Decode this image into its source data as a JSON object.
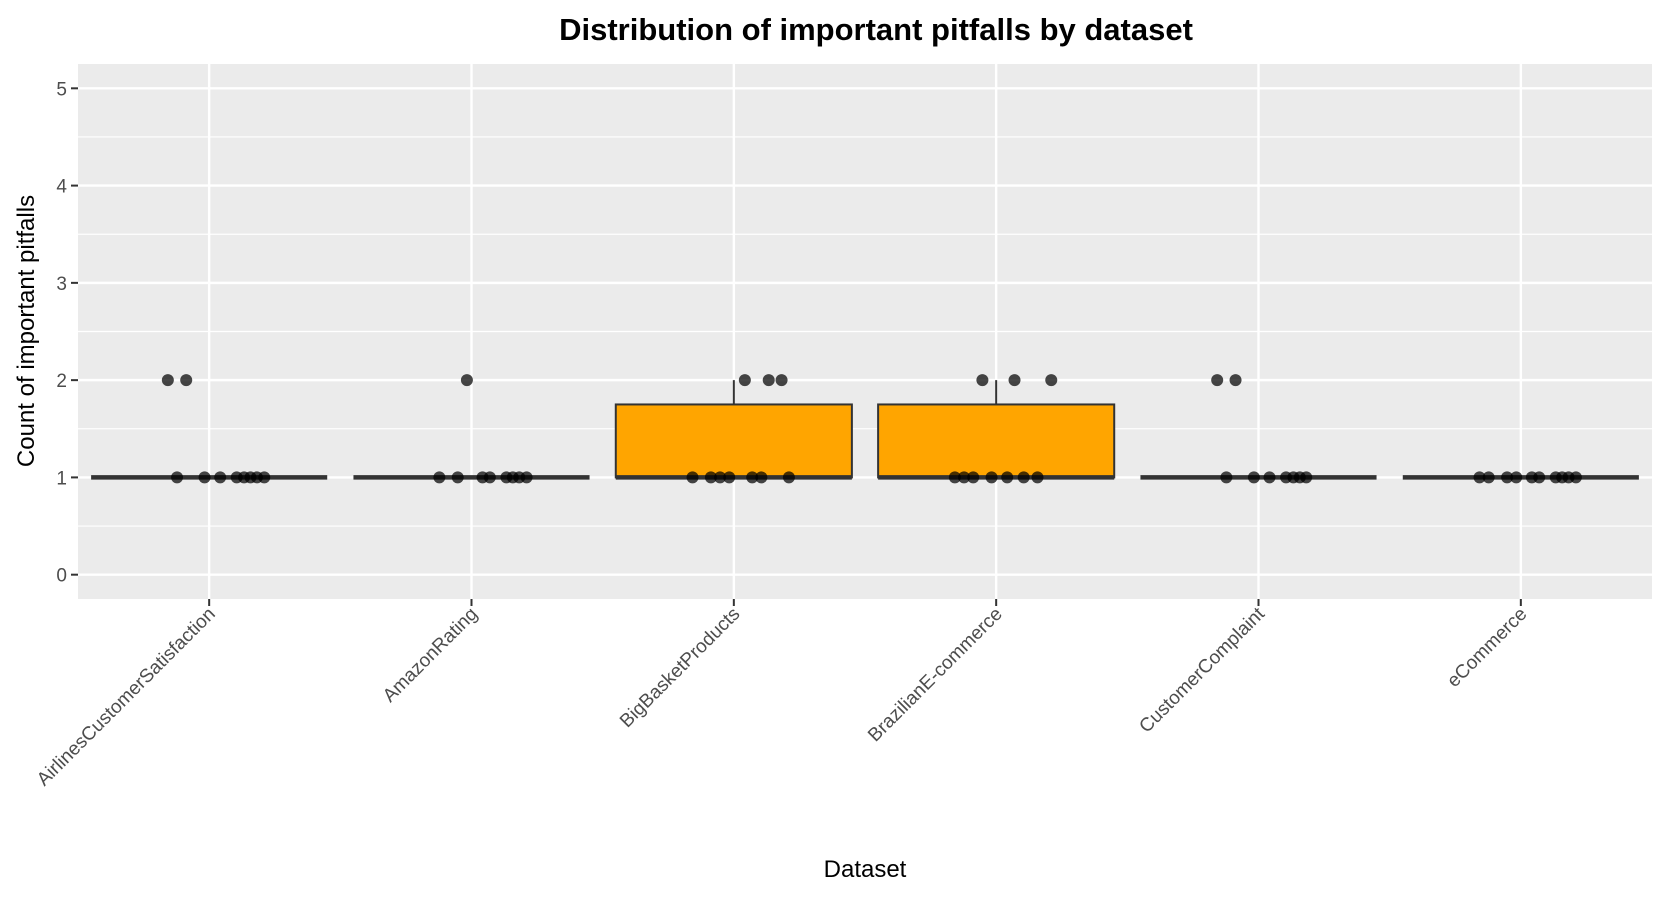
{
  "chart_data": {
    "type": "box",
    "title": "Distribution of important pitfalls by dataset",
    "xlabel": "Dataset",
    "ylabel": "Count of important pitfalls",
    "ylim": [
      -0.25,
      5.25
    ],
    "yticks": [
      "0",
      "1",
      "2",
      "3",
      "4",
      "5"
    ],
    "grid": true,
    "legend": "none",
    "colors": {
      "panel": "#ebebeb",
      "grid": "#ffffff",
      "box_fill": "#ffa500",
      "box_line": "#333333",
      "point": "#000000"
    },
    "categories": [
      "AirlinesCustomerSatisfaction",
      "AmazonRating",
      "BigBasketProducts",
      "BrazilianE-commerce",
      "CustomerComplaint",
      "eCommerce"
    ],
    "boxes": [
      {
        "q1": 1,
        "median": 1,
        "q3": 1,
        "whisker_low": 1,
        "whisker_high": 1
      },
      {
        "q1": 1,
        "median": 1,
        "q3": 1,
        "whisker_low": 1,
        "whisker_high": 1
      },
      {
        "q1": 1,
        "median": 1,
        "q3": 1.75,
        "whisker_low": 1,
        "whisker_high": 2
      },
      {
        "q1": 1,
        "median": 1,
        "q3": 1.75,
        "whisker_low": 1,
        "whisker_high": 2
      },
      {
        "q1": 1,
        "median": 1,
        "q3": 1,
        "whisker_low": 1,
        "whisker_high": 1
      },
      {
        "q1": 1,
        "median": 1,
        "q3": 1,
        "whisker_low": 1,
        "whisker_high": 1
      }
    ],
    "points": [
      {
        "category": "AirlinesCustomerSatisfaction",
        "values": [
          2,
          2,
          1,
          1,
          1,
          1,
          1,
          1,
          1,
          1
        ]
      },
      {
        "category": "AmazonRating",
        "values": [
          2,
          1,
          1,
          1,
          1,
          1,
          1,
          1,
          1
        ]
      },
      {
        "category": "BigBasketProducts",
        "values": [
          2,
          2,
          2,
          1,
          1,
          1,
          1,
          1,
          1,
          1
        ]
      },
      {
        "category": "BrazilianE-commerce",
        "values": [
          2,
          2,
          2,
          1,
          1,
          1,
          1,
          1,
          1,
          1
        ]
      },
      {
        "category": "CustomerComplaint",
        "values": [
          2,
          2,
          1,
          1,
          1,
          1,
          1,
          1,
          1
        ]
      },
      {
        "category": "eCommerce",
        "values": [
          1,
          1,
          1,
          1,
          1,
          1,
          1,
          1,
          1,
          1
        ]
      }
    ]
  }
}
